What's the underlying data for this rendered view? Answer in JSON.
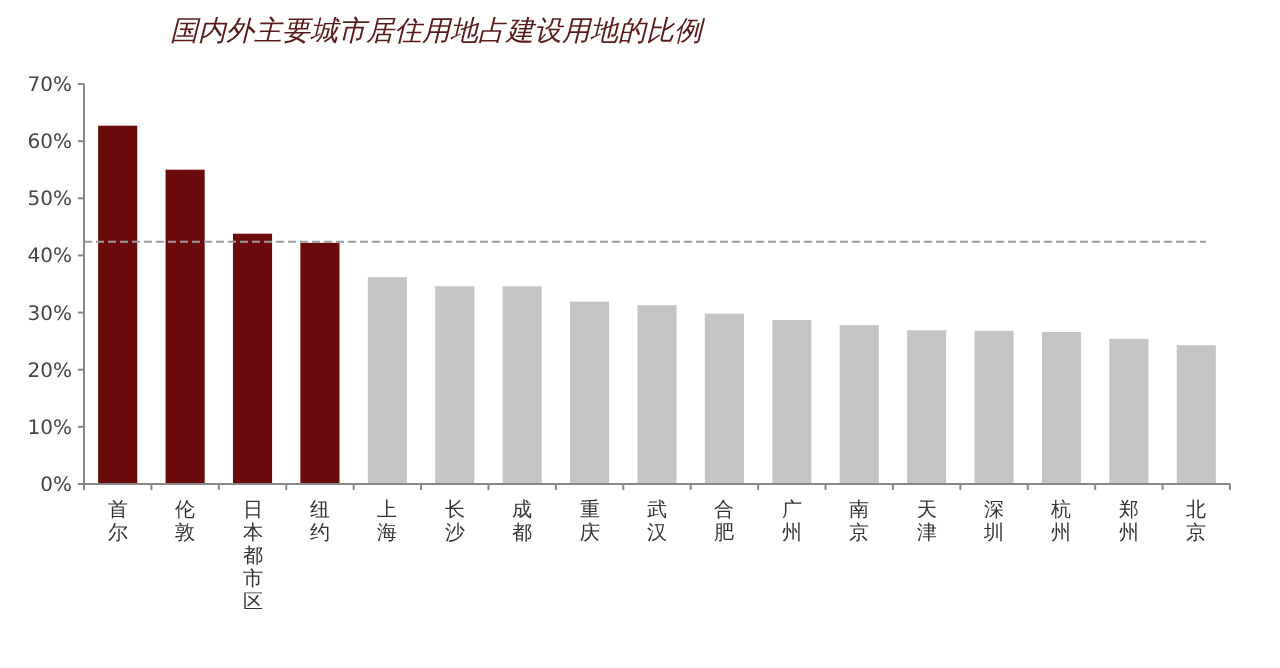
{
  "chart_data": {
    "type": "bar",
    "title": "国内外主要城市居住用地占建设用地的比例",
    "categories": [
      "首尔",
      "伦敦",
      "日本都市区",
      "纽约",
      "上海",
      "长沙",
      "成都",
      "重庆",
      "武汉",
      "合肥",
      "广州",
      "南京",
      "天津",
      "深圳",
      "杭州",
      "郑州",
      "北京"
    ],
    "values": [
      62.7,
      55.0,
      43.8,
      42.2,
      36.2,
      34.6,
      34.6,
      31.9,
      31.3,
      29.8,
      28.7,
      27.8,
      26.9,
      26.8,
      26.6,
      25.4,
      24.3
    ],
    "colors": [
      "#6b0a0a",
      "#6b0a0a",
      "#6b0a0a",
      "#6b0a0a",
      "#c4c4c2",
      "#c4c4c2",
      "#c4c4c2",
      "#c4c4c2",
      "#c4c4c2",
      "#c4c4c2",
      "#c4c4c2",
      "#c4c4c2",
      "#c4c4c2",
      "#c4c4c2",
      "#c4c4c2",
      "#c4c4c2",
      "#c4c4c2"
    ],
    "ylim": [
      0,
      70
    ],
    "yticks": [
      {
        "value": 0,
        "label": "0%"
      },
      {
        "value": 10,
        "label": "10%"
      },
      {
        "value": 20,
        "label": "20%"
      },
      {
        "value": 30,
        "label": "30%"
      },
      {
        "value": 40,
        "label": "40%"
      },
      {
        "value": 50,
        "label": "50%"
      },
      {
        "value": 60,
        "label": "60%"
      },
      {
        "value": 70,
        "label": "70%"
      }
    ],
    "ref_lines": [
      {
        "axis": "y",
        "value": 42.4,
        "color": "#9a9a9a",
        "line_style": "dashed"
      }
    ]
  }
}
